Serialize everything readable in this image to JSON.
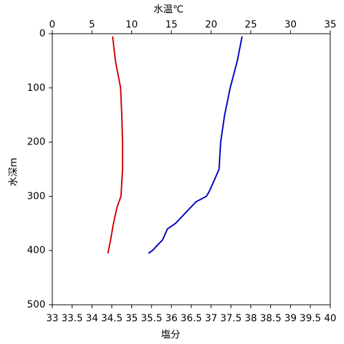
{
  "chart_data": {
    "type": "line",
    "xlabel": "水温℃",
    "xlabel_color": "#1c1cb0",
    "x2label": "塩分",
    "x2label_color": "#c00000",
    "ylabel": "水深m",
    "xlim": [
      0,
      35
    ],
    "xticks": [
      0,
      5,
      10,
      15,
      20,
      25,
      30,
      35
    ],
    "x2lim": [
      33,
      40
    ],
    "x2ticks": [
      33,
      33.5,
      34,
      34.5,
      35,
      35.5,
      36,
      36.5,
      37,
      37.5,
      38,
      38.5,
      39,
      39.5,
      40
    ],
    "ylim": [
      0,
      500
    ],
    "yticks": [
      0,
      100,
      200,
      300,
      400,
      500
    ],
    "y_inverted": true,
    "series": [
      {
        "color": "#0000c0",
        "axis": "x",
        "x": [
          23.9,
          23.3,
          22.4,
          21.7,
          21.2,
          21.0,
          19.8,
          19.4,
          18.1,
          16.8,
          15.5,
          14.5,
          13.9,
          12.6,
          12.1
        ],
        "y": [
          5,
          50,
          100,
          150,
          200,
          250,
          290,
          300,
          310,
          330,
          350,
          360,
          380,
          400,
          405
        ]
      },
      {
        "color": "#d00000",
        "axis": "x2",
        "x": [
          34.52,
          34.59,
          34.72,
          34.75,
          34.77,
          34.77,
          34.73,
          34.63,
          34.54,
          34.47,
          34.4
        ],
        "y": [
          5,
          50,
          100,
          150,
          200,
          250,
          300,
          320,
          350,
          380,
          405
        ]
      }
    ]
  }
}
